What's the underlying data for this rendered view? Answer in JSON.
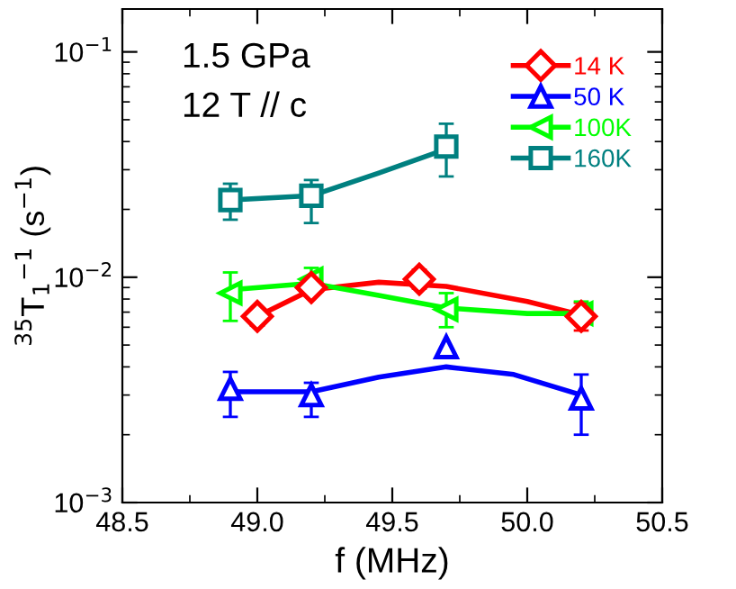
{
  "chart_data": {
    "type": "scatter",
    "xlabel": "f (MHz)",
    "ylabel": "$^{35}$T$_{1}$$^{−1}$ (s$^{−1}$)",
    "log": "y",
    "xlim": [
      48.5,
      50.5
    ],
    "xticks": [
      {
        "value": 48.5,
        "label": "48.5"
      },
      {
        "value": 49.0,
        "label": "49.0"
      },
      {
        "value": 49.5,
        "label": "49.5"
      },
      {
        "value": 50.0,
        "label": "50.0"
      },
      {
        "value": 50.5,
        "label": "50.5"
      }
    ],
    "ylim": [
      0.001,
      0.155
    ],
    "yticks": [
      {
        "value": 0.001,
        "label": "10$^{−3}$"
      },
      {
        "value": 0.01,
        "label": "10$^{−2}$"
      },
      {
        "value": 0.1,
        "label": "10$^{−1}$"
      }
    ],
    "grid": false,
    "legend": "top right",
    "annotations": [
      "1.5 GPa",
      "12 T // c"
    ],
    "series": [
      {
        "name": "14 K",
        "color": "#ff0000",
        "marker": "diamond",
        "x": [
          49.0,
          49.2,
          49.6,
          50.2
        ],
        "values": [
          0.0067,
          0.009,
          0.0098,
          0.0067
        ],
        "errors": [
          [
            0.0061,
            0.0072
          ],
          [
            0.0083,
            0.0097
          ],
          [
            0.0089,
            0.0108
          ],
          [
            0.0058,
            0.0077
          ]
        ]
      },
      {
        "name": "50 K",
        "color": "#0000ff",
        "marker": "triangle",
        "x": [
          48.9,
          49.2,
          49.7,
          50.2
        ],
        "values": [
          0.0032,
          0.003,
          0.0049,
          0.0029
        ],
        "errors": [
          [
            0.0024,
            0.0038
          ],
          [
            0.0024,
            0.0034
          ],
          null,
          [
            0.002,
            0.0037
          ]
        ]
      },
      {
        "name": "100K",
        "color": "#00ff00",
        "marker": "triangle-left",
        "x": [
          48.9,
          49.2,
          49.7,
          50.2
        ],
        "values": [
          0.0085,
          0.0098,
          0.0072,
          0.0069
        ],
        "errors": [
          [
            0.0064,
            0.0105
          ],
          [
            0.009,
            0.011
          ],
          [
            0.006,
            0.0085
          ],
          [
            0.0062,
            0.0078
          ]
        ]
      },
      {
        "name": "160K",
        "color": "#008080",
        "marker": "square",
        "x": [
          48.9,
          49.2,
          49.7
        ],
        "values": [
          0.022,
          0.023,
          0.038
        ],
        "errors": [
          [
            0.018,
            0.026
          ],
          [
            0.0174,
            0.027
          ],
          [
            0.028,
            0.048
          ]
        ]
      },
      {
        "type": "line",
        "color": "#ff0000",
        "x": [
          49.0,
          49.2,
          49.45,
          49.7,
          50.0,
          50.2
        ],
        "values": [
          0.0067,
          0.0088,
          0.0095,
          0.0091,
          0.0078,
          0.0068
        ]
      },
      {
        "type": "line",
        "color": "#0000ff",
        "x": [
          48.9,
          49.2,
          49.45,
          49.7,
          49.95,
          50.2
        ],
        "values": [
          0.0031,
          0.0031,
          0.0036,
          0.004,
          0.0037,
          0.003
        ]
      },
      {
        "type": "line",
        "color": "#00ff00",
        "x": [
          48.9,
          49.2,
          49.45,
          49.7,
          50.0,
          50.2
        ],
        "values": [
          0.0088,
          0.0094,
          0.0083,
          0.0073,
          0.0069,
          0.0069
        ]
      },
      {
        "type": "line",
        "color": "#008080",
        "x": [
          48.9,
          49.2,
          49.45,
          49.7
        ],
        "values": [
          0.022,
          0.023,
          0.029,
          0.037
        ]
      }
    ]
  }
}
